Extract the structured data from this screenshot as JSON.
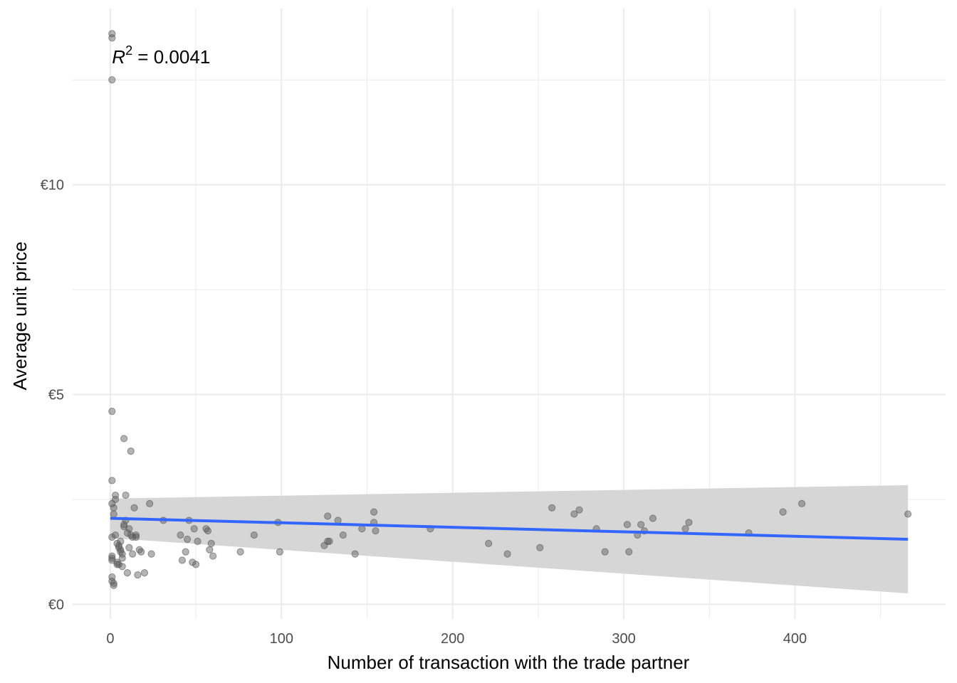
{
  "chart_data": {
    "type": "scatter",
    "title": "",
    "xlabel": "Number of transaction with the trade partner",
    "ylabel": "Average unit price",
    "xlim": [
      -22,
      488
    ],
    "ylim": [
      -0.35,
      14.2
    ],
    "x_ticks": [
      0,
      100,
      200,
      300,
      400
    ],
    "x_tick_labels": [
      "0",
      "100",
      "200",
      "300",
      "400"
    ],
    "y_ticks": [
      0,
      5,
      10
    ],
    "y_tick_labels": [
      "€0",
      "€5",
      "€10"
    ],
    "x_minor_grid": [
      50,
      150,
      250,
      350,
      450
    ],
    "y_minor_grid": [
      2.5,
      7.5,
      12.5
    ],
    "grid": true,
    "legend": "none",
    "annotation": {
      "symbol": "R",
      "superscript": "2",
      "text": " = 0.0041",
      "x": 1,
      "y": 13.05
    },
    "colors": {
      "points": "#595959",
      "fit_line": "#3366FF",
      "confidence_band": "#d4d4d4",
      "grid": "#ebebeb"
    },
    "fit": {
      "x": [
        0,
        466
      ],
      "y": [
        2.05,
        1.55
      ],
      "band_lower": [
        1.58,
        0.26
      ],
      "band_upper": [
        2.52,
        2.84
      ]
    },
    "points": {
      "x": [
        1,
        1,
        1,
        1,
        1,
        1,
        2,
        2,
        1,
        1,
        1,
        1,
        1,
        1,
        2,
        2,
        3,
        3,
        3,
        4,
        4,
        4,
        5,
        5,
        5,
        6,
        6,
        6,
        7,
        7,
        7,
        8,
        8,
        8,
        9,
        9,
        10,
        10,
        11,
        11,
        12,
        12,
        13,
        13,
        14,
        15,
        15,
        16,
        17,
        18,
        20,
        23,
        24,
        31,
        41,
        42,
        44,
        45,
        46,
        48,
        49,
        50,
        51,
        56,
        57,
        58,
        59,
        60,
        76,
        84,
        99,
        98,
        125,
        127,
        127,
        128,
        133,
        136,
        147,
        154,
        154,
        155,
        143,
        187,
        221,
        232,
        251,
        258,
        271,
        274,
        284,
        289,
        302,
        303,
        308,
        310,
        312,
        317,
        336,
        338,
        373,
        393,
        404,
        466
      ],
      "y": [
        13.6,
        13.5,
        12.5,
        4.6,
        2.95,
        2.4,
        2.3,
        2.15,
        1.6,
        1.15,
        1.1,
        1.05,
        0.65,
        0.55,
        0.5,
        0.45,
        2.6,
        2.5,
        1.65,
        1.45,
        1.0,
        0.95,
        1.4,
        1.35,
        0.95,
        1.5,
        1.3,
        1.25,
        1.2,
        1.1,
        0.9,
        3.95,
        1.85,
        1.9,
        2.0,
        2.6,
        1.7,
        0.75,
        1.8,
        1.35,
        3.65,
        1.65,
        1.6,
        1.2,
        2.3,
        1.6,
        1.65,
        0.7,
        1.3,
        1.25,
        0.75,
        2.4,
        1.2,
        2.0,
        1.65,
        1.05,
        1.25,
        1.55,
        2.0,
        1.0,
        1.8,
        0.95,
        1.5,
        1.8,
        1.75,
        1.3,
        1.45,
        1.15,
        1.25,
        1.65,
        1.25,
        1.95,
        1.4,
        1.5,
        2.1,
        1.5,
        2.0,
        1.65,
        1.8,
        2.2,
        1.95,
        1.75,
        1.2,
        1.8,
        1.45,
        1.2,
        1.35,
        2.3,
        2.15,
        2.25,
        1.8,
        1.25,
        1.9,
        1.25,
        1.65,
        1.9,
        1.75,
        2.05,
        1.8,
        1.95,
        1.7,
        2.2,
        2.4,
        2.15
      ]
    }
  }
}
